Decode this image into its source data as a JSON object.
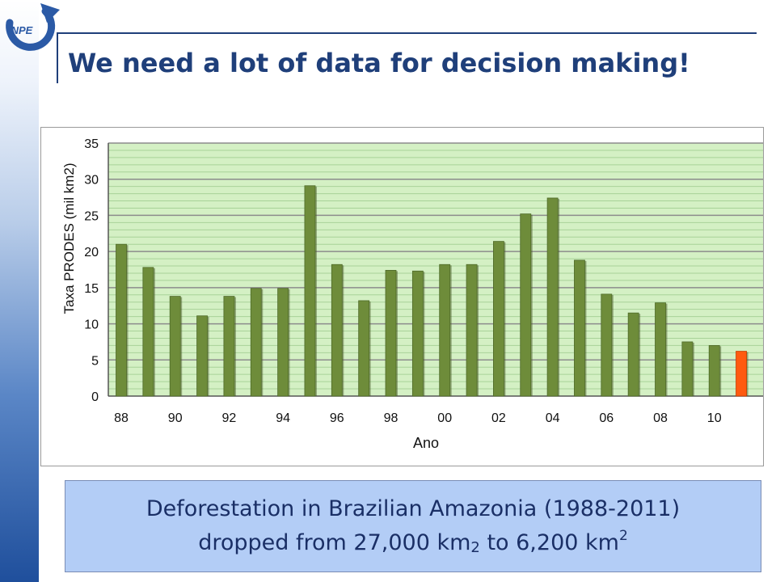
{
  "header": {
    "title": "We need a lot of data for decision making!",
    "logo_text": "INPE"
  },
  "caption": {
    "line1": "Deforestation in Brazilian Amazonia (1988-2011)",
    "line2_part1": "dropped from 27,000 km",
    "line2_part2": " to 6,200 km",
    "exponent": "2"
  },
  "chart_data": {
    "type": "bar",
    "xlabel": "Ano",
    "ylabel": "Taxa PRODES (mil km2)",
    "ylim": [
      0,
      35
    ],
    "yticks": [
      "0",
      "5",
      "10",
      "15",
      "20",
      "25",
      "30",
      "35"
    ],
    "categories": [
      "88",
      "89",
      "90",
      "91",
      "92",
      "93",
      "94",
      "95",
      "96",
      "97",
      "98",
      "99",
      "00",
      "01",
      "02",
      "03",
      "04",
      "05",
      "06",
      "07",
      "08",
      "09",
      "10",
      "11"
    ],
    "tick_labels": [
      "88",
      "90",
      "92",
      "94",
      "96",
      "98",
      "00",
      "02",
      "04",
      "06",
      "08",
      "10"
    ],
    "values": [
      21.0,
      17.8,
      13.8,
      11.1,
      13.8,
      14.9,
      14.9,
      29.1,
      18.2,
      13.2,
      17.4,
      17.3,
      18.2,
      18.2,
      21.4,
      25.2,
      27.4,
      18.8,
      14.1,
      11.5,
      12.9,
      7.5,
      7.0,
      6.2
    ],
    "grid": true,
    "colors": {
      "bar": "#6e8c3a",
      "bar_highlight": "#ff5a10",
      "plot_background": "#d4f0c4",
      "gridline": "#a8d298",
      "major_gridline": "#8c8c8c",
      "tick_text": "#111111"
    }
  }
}
